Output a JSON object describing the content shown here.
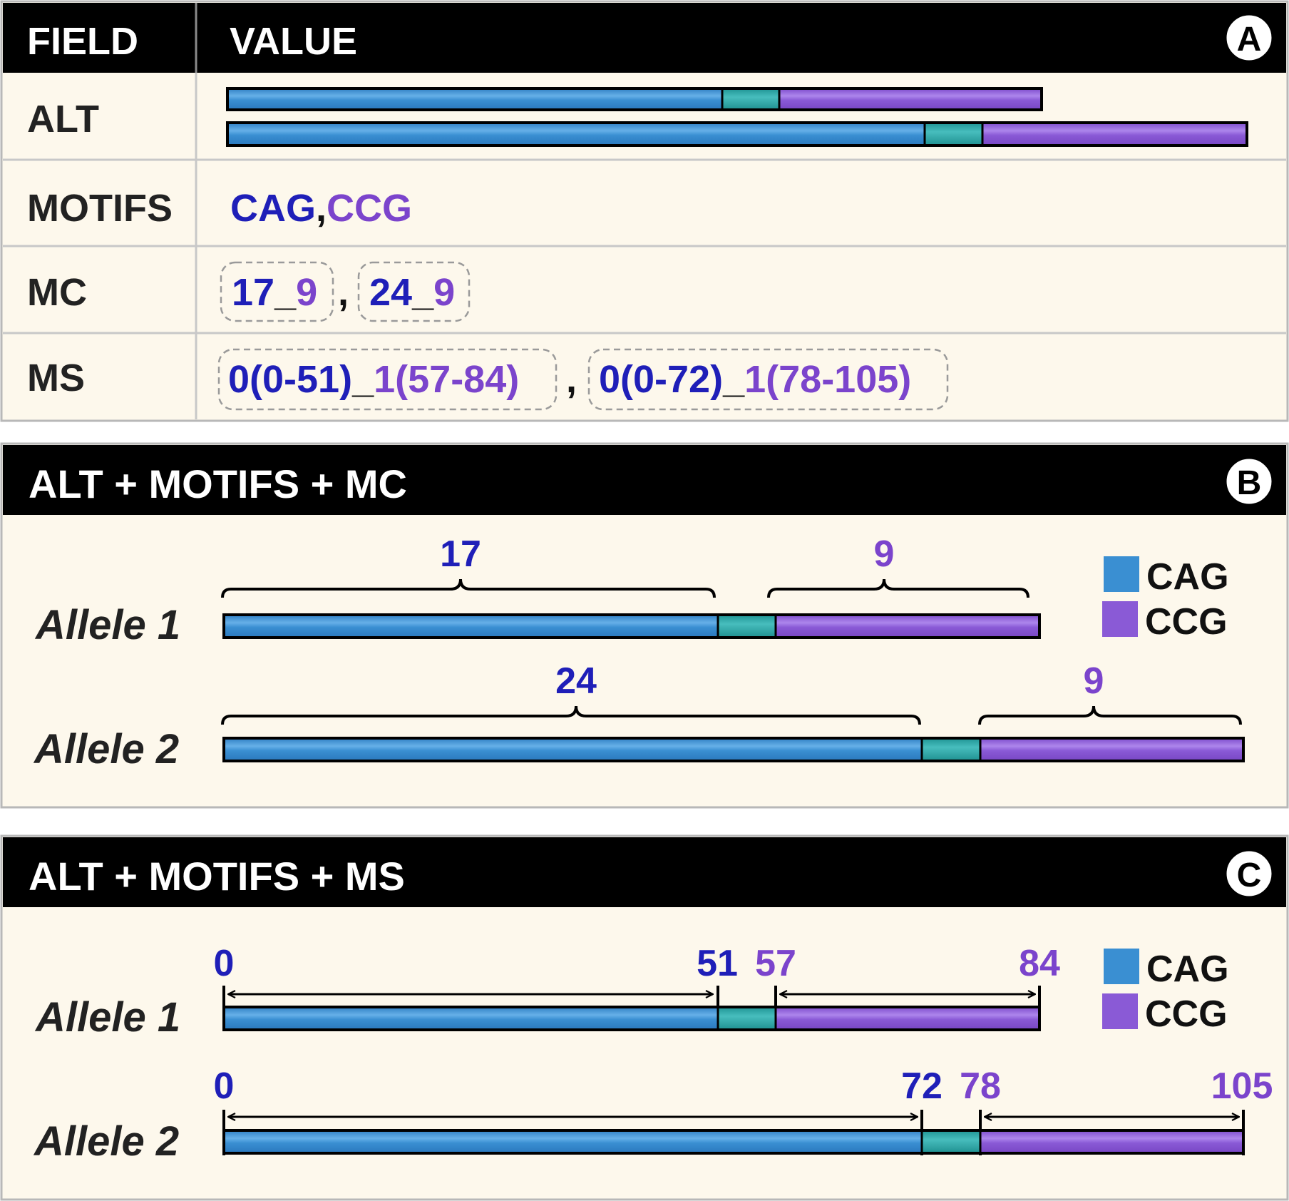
{
  "colors": {
    "cag": "#3a8fd2",
    "ccg": "#8a5ad6",
    "linker": "#2aa5a5",
    "cag_text": "#1f1fb8",
    "ccg_text": "#7b44cc",
    "header_bg": "#000000",
    "panel_bg": "#fdf8ec",
    "grid": "#c8c8c8"
  },
  "panel_a": {
    "badge": "A",
    "col_field": "FIELD",
    "col_value": "VALUE",
    "rows": {
      "alt": "ALT",
      "motifs": "MOTIFS",
      "mc": "MC",
      "ms": "MS"
    },
    "motifs": {
      "cag": "CAG",
      "sep": ",",
      "ccg": "CCG"
    },
    "mc": [
      {
        "cag": "17",
        "us": "_",
        "ccg": "9"
      },
      {
        "cag": "24",
        "us": "_",
        "ccg": "9"
      }
    ],
    "mc_sep": ",",
    "ms": [
      {
        "cag": "0(0-51)",
        "us": "_",
        "ccg": "1(57-84)"
      },
      {
        "cag": "0(0-72)",
        "us": "_",
        "ccg": "1(78-105)"
      }
    ],
    "ms_sep": ","
  },
  "panel_b": {
    "badge": "B",
    "title": "ALT + MOTIFS + MC",
    "alleles": [
      {
        "label": "Allele 1",
        "cag_count": "17",
        "ccg_count": "9"
      },
      {
        "label": "Allele 2",
        "cag_count": "24",
        "ccg_count": "9"
      }
    ],
    "legend": [
      {
        "name": "CAG",
        "icon": "cag-swatch"
      },
      {
        "name": "CCG",
        "icon": "ccg-swatch"
      }
    ]
  },
  "panel_c": {
    "badge": "C",
    "title": "ALT + MOTIFS + MS",
    "alleles": [
      {
        "label": "Allele 1",
        "cag_start": "0",
        "cag_end": "51",
        "ccg_start": "57",
        "ccg_end": "84"
      },
      {
        "label": "Allele 2",
        "cag_start": "0",
        "cag_end": "72",
        "ccg_start": "78",
        "ccg_end": "105"
      }
    ],
    "legend": [
      {
        "name": "CAG",
        "icon": "cag-swatch"
      },
      {
        "name": "CCG",
        "icon": "ccg-swatch"
      }
    ]
  }
}
